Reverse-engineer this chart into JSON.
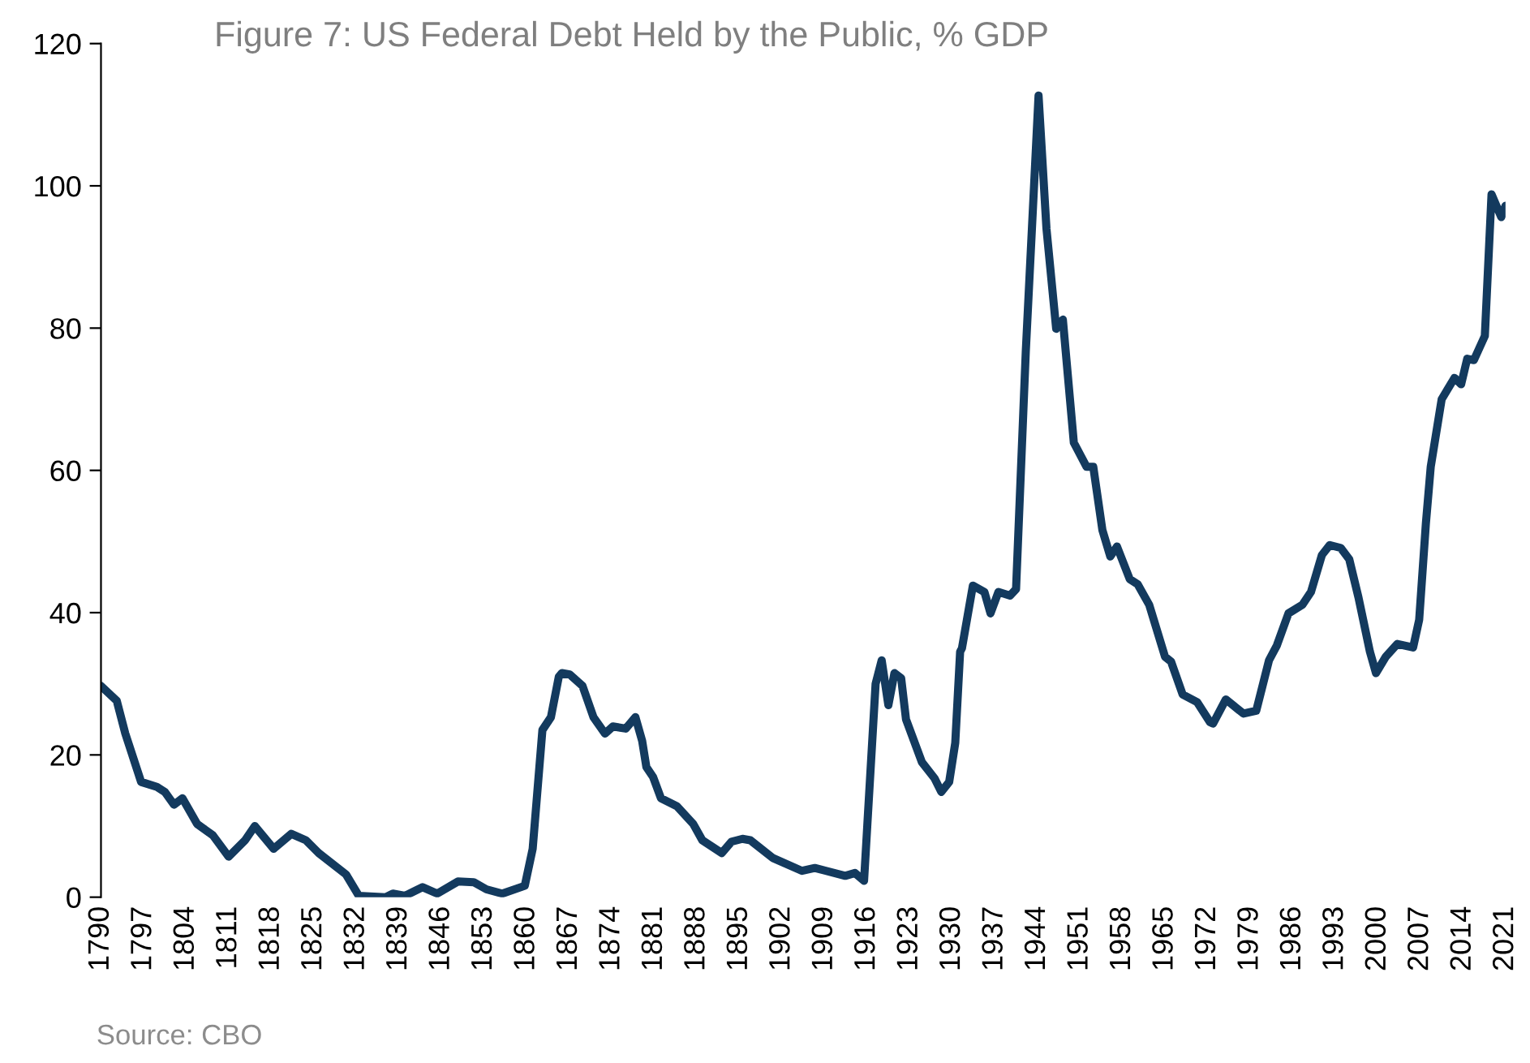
{
  "chart_data": {
    "type": "line",
    "title": "Figure 7: US Federal Debt Held by the Public, % GDP",
    "annotations": [
      "Source: CBO"
    ],
    "series": [
      {
        "color": "#133a5e",
        "x": [
          1790,
          1792.6,
          1794,
          1796.6,
          1799.2,
          1800.5,
          1802,
          1803.4,
          1805.8,
          1808.4,
          1811,
          1813.7,
          1815.3,
          1818.4,
          1821.3,
          1823.7,
          1825.8,
          1830.3,
          1832.4,
          1836.8,
          1838,
          1840,
          1842.9,
          1845.3,
          1848.7,
          1851.3,
          1853.4,
          1856,
          1859.7,
          1861,
          1862.6,
          1864,
          1865.3,
          1865.8,
          1867.1,
          1869.2,
          1871,
          1872.9,
          1874.2,
          1876.3,
          1877.9,
          1879,
          1879.7,
          1880.8,
          1882.1,
          1884.7,
          1887.4,
          1888.9,
          1892.1,
          1893.7,
          1895.5,
          1896.8,
          1900.5,
          1905.3,
          1907.4,
          1912.4,
          1914,
          1915.5,
          1917.4,
          1918.4,
          1919.5,
          1920.5,
          1921.6,
          1922.4,
          1925,
          1927.1,
          1928.2,
          1929.5,
          1930.5,
          1931.3,
          1931.6,
          1933.4,
          1935.3,
          1936.3,
          1937.6,
          1939.5,
          1940.5,
          1942.1,
          1944.2,
          1945.5,
          1947.1,
          1948.2,
          1950,
          1952.1,
          1953.2,
          1954.7,
          1956,
          1957.1,
          1959.2,
          1960.5,
          1962.4,
          1965,
          1966,
          1967.9,
          1970.3,
          1972.4,
          1972.9,
          1975,
          1977.9,
          1980,
          1982.1,
          1983.4,
          1985.3,
          1987.6,
          1989,
          1990.8,
          1992.1,
          1993.9,
          1995.3,
          1996.8,
          1998.7,
          1999.7,
          2001.3,
          2003.2,
          2005.8,
          2006.8,
          2007.9,
          2008.7,
          2010.5,
          2012.6,
          2013.7,
          2014.7,
          2015.8,
          2017.6,
          2018.7,
          2020.3,
          2021
        ],
        "values": [
          29.7,
          27.6,
          23,
          16.2,
          15.5,
          14.8,
          13,
          13.9,
          10.3,
          8.7,
          5.7,
          8,
          10,
          6.8,
          8.9,
          8,
          6.2,
          3.2,
          0.2,
          0,
          0.5,
          0.2,
          1.4,
          0.5,
          2.2,
          2.1,
          1.1,
          0.5,
          1.6,
          6.8,
          23.5,
          25.3,
          31,
          31.5,
          31.3,
          29.7,
          25.3,
          23,
          24,
          23.7,
          25.3,
          22,
          18.3,
          16.9,
          13.9,
          12.8,
          10.3,
          8,
          6.2,
          7.8,
          8.2,
          8,
          5.5,
          3.7,
          4.1,
          3,
          3.4,
          2.3,
          30,
          33.3,
          27,
          31.5,
          30.8,
          25,
          19,
          16.7,
          14.8,
          16.2,
          21.7,
          34.5,
          35,
          43.8,
          42.9,
          39.9,
          42.9,
          42.4,
          43.3,
          76.7,
          112.7,
          94,
          79.9,
          81.2,
          63.9,
          60.5,
          60.5,
          51.6,
          47.9,
          49.3,
          44.7,
          44,
          41.1,
          33.8,
          33.1,
          28.5,
          27.4,
          24.6,
          24.4,
          27.8,
          25.8,
          26.2,
          33.3,
          35.4,
          39.9,
          41.1,
          42.9,
          48.1,
          49.5,
          49.1,
          47.5,
          42.2,
          34.5,
          31.5,
          33.8,
          35.6,
          35.1,
          39,
          52.5,
          60.5,
          70,
          73,
          72.1,
          75.7,
          75.5,
          78.9,
          98.8,
          95.6,
          97.2
        ]
      }
    ],
    "xlim": [
      1790,
      2021
    ],
    "xticks": [
      1790,
      1797,
      1804,
      1811,
      1818,
      1825,
      1832,
      1839,
      1846,
      1853,
      1860,
      1867,
      1874,
      1881,
      1888,
      1895,
      1902,
      1909,
      1916,
      1923,
      1930,
      1937,
      1944,
      1951,
      1958,
      1965,
      1972,
      1979,
      1986,
      1993,
      2000,
      2007,
      2014,
      2021
    ],
    "ylim": [
      0,
      120
    ],
    "yticks": [
      0,
      20,
      40,
      60,
      80,
      100,
      120
    ],
    "grid": false,
    "legend": false,
    "marker": "none",
    "line_style": "solid"
  }
}
